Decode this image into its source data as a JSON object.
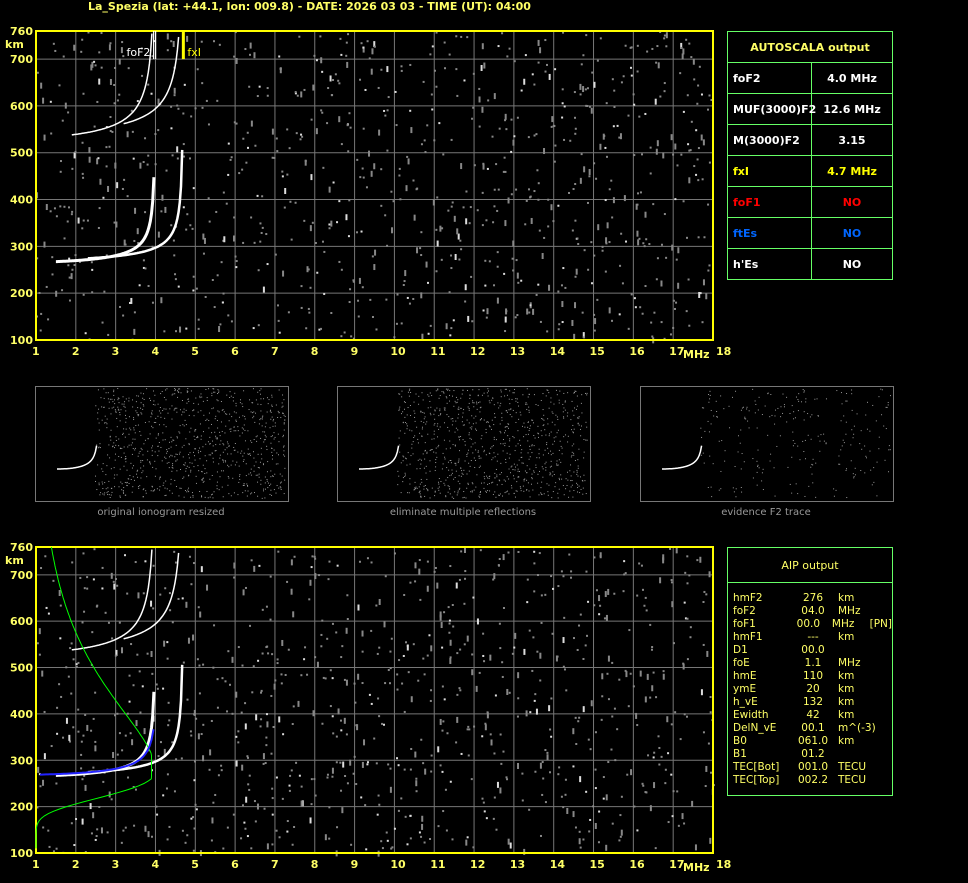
{
  "title": "La_Spezia (lat: +44.1, lon: 009.8) - DATE: 2026 03 03 - TIME (UT): 04:00",
  "colors": {
    "frame": "#ffff00",
    "grid": "#777777",
    "table_border": "#66ff66",
    "trace": "#ffffff",
    "profile": "#00ff00",
    "fit": "#0000ff",
    "label": "#ffff66",
    "no_red": "#ff0000",
    "no_blue": "#0066ff"
  },
  "chart_data": [
    {
      "type": "scatter",
      "panel": "top",
      "xlabel": "MHz",
      "ylabel": "km",
      "xlim": [
        1,
        18
      ],
      "ylim": [
        100,
        760
      ],
      "xticks": [
        "1",
        "2",
        "3",
        "4",
        "5",
        "6",
        "7",
        "8",
        "9",
        "10",
        "11",
        "12",
        "13",
        "14",
        "15",
        "16",
        "17",
        "18"
      ],
      "yticks": [
        "100",
        "200",
        "300",
        "400",
        "500",
        "600",
        "700",
        "760"
      ],
      "markers": [
        {
          "label": "foF2",
          "x": 4.0,
          "color": "#ffffff"
        },
        {
          "label": "fxI",
          "x": 4.7,
          "color": "#ffff00"
        }
      ],
      "grid": true
    },
    {
      "type": "scatter",
      "panel": "bottom",
      "xlabel": "MHz",
      "ylabel": "km",
      "xlim": [
        1,
        18
      ],
      "ylim": [
        100,
        760
      ],
      "xticks": [
        "1",
        "2",
        "3",
        "4",
        "5",
        "6",
        "7",
        "8",
        "9",
        "10",
        "11",
        "12",
        "13",
        "14",
        "15",
        "16",
        "17",
        "18"
      ],
      "yticks": [
        "100",
        "200",
        "300",
        "400",
        "500",
        "600",
        "700",
        "760"
      ],
      "grid": true
    }
  ],
  "thumbs": [
    "original ionogram resized",
    "eliminate multiple reflections",
    "evidence F2 trace"
  ],
  "autoscala": {
    "title": "AUTOSCALA output",
    "rows": [
      {
        "label": "foF2",
        "value": "4.0 MHz",
        "color": "#ffffff",
        "vcolor": "#ffffff"
      },
      {
        "label": "MUF(3000)F2",
        "value": "12.6 MHz",
        "color": "#ffffff",
        "vcolor": "#ffffff"
      },
      {
        "label": "M(3000)F2",
        "value": "3.15",
        "color": "#ffffff",
        "vcolor": "#ffffff"
      },
      {
        "label": "fxI",
        "value": "4.7 MHz",
        "color": "#ffff00",
        "vcolor": "#ffff00"
      },
      {
        "label": "foF1",
        "value": "NO",
        "color": "#ff0000",
        "vcolor": "#ff0000"
      },
      {
        "label": "ftEs",
        "value": "NO",
        "color": "#0066ff",
        "vcolor": "#0066ff"
      },
      {
        "label": "h'Es",
        "value": "NO",
        "color": "#ffffff",
        "vcolor": "#ffffff"
      }
    ]
  },
  "aip": {
    "title": "AIP output",
    "rows": [
      [
        "hmF2",
        "276",
        "km",
        ""
      ],
      [
        "foF2",
        "04.0",
        "MHz",
        ""
      ],
      [
        "foF1",
        "00.0",
        "MHz",
        "[PN]"
      ],
      [
        "hmF1",
        "---",
        "km",
        ""
      ],
      [
        "D1",
        "00.0",
        "",
        ""
      ],
      [
        "foE",
        "1.1",
        "MHz",
        ""
      ],
      [
        "hmE",
        "110",
        "km",
        ""
      ],
      [
        "ymE",
        "20",
        "km",
        ""
      ],
      [
        "h_vE",
        "132",
        "km",
        ""
      ],
      [
        "Ewidth",
        "42",
        "km",
        ""
      ],
      [
        "DelN_vE",
        "00.1",
        "m^(-3)",
        ""
      ],
      [
        "B0",
        "061.0",
        "km",
        ""
      ],
      [
        "B1",
        "01.2",
        "",
        ""
      ],
      [
        "TEC[Bot]",
        "001.0",
        "TECU",
        ""
      ],
      [
        "TEC[Top]",
        "002.2",
        "TECU",
        ""
      ]
    ]
  }
}
